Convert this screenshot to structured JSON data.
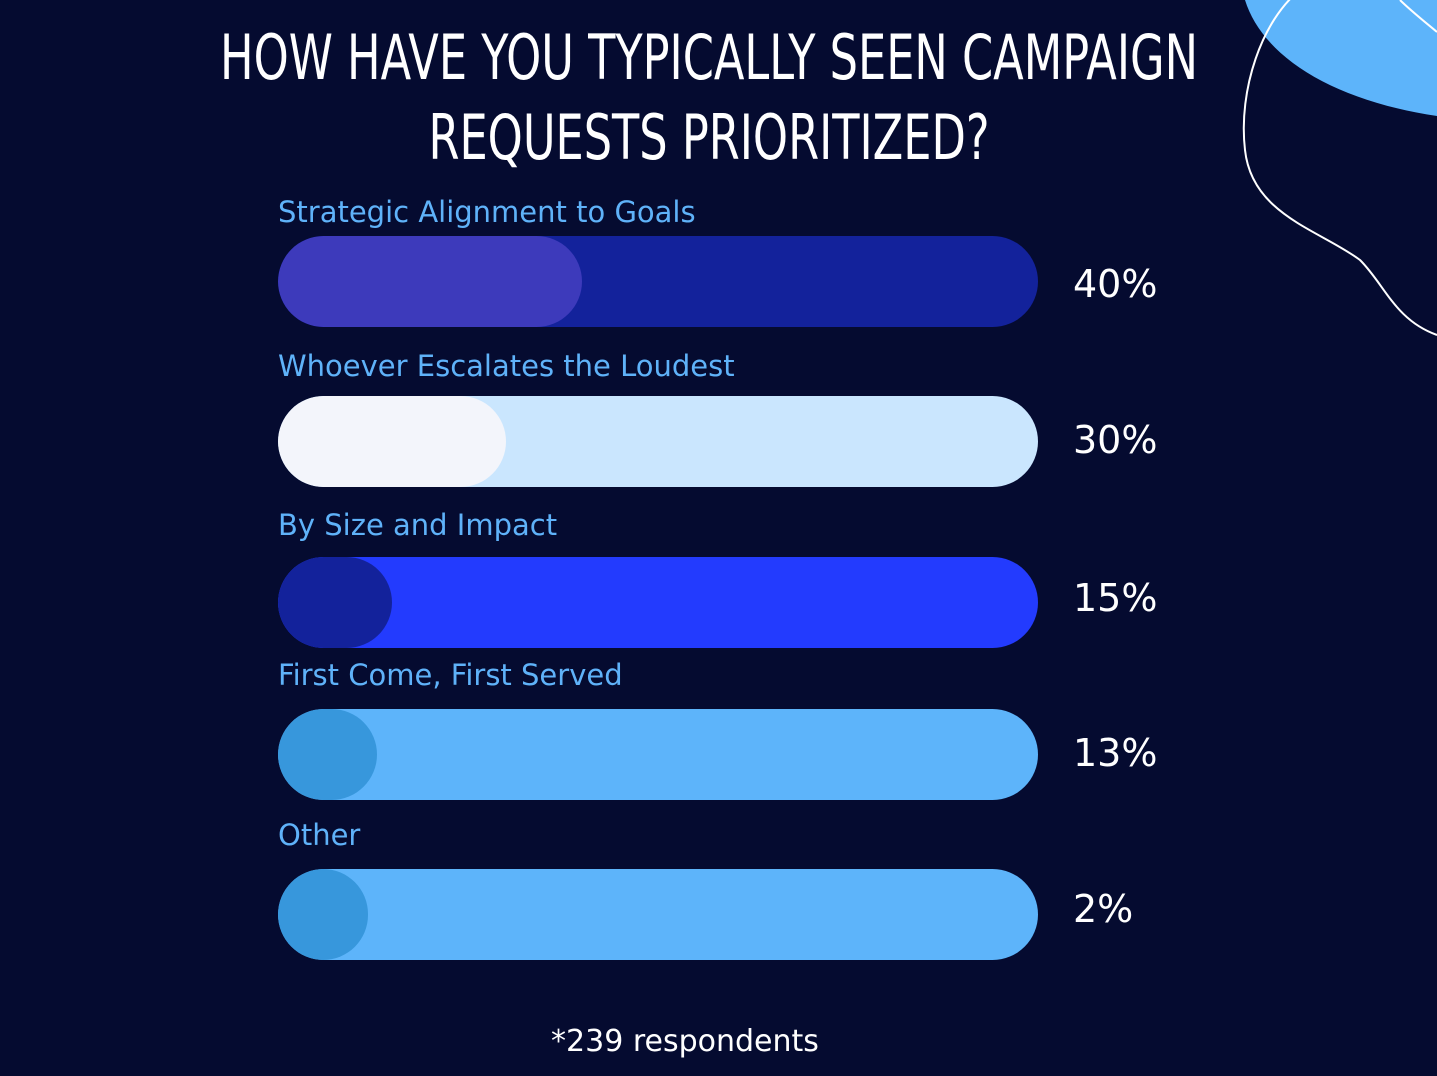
{
  "chart_data": {
    "type": "bar",
    "title": "HOW HAVE YOU TYPICALLY SEEN CAMPAIGN REQUESTS PRIORITIZED?",
    "title_lines": [
      "HOW HAVE YOU TYPICALLY SEEN CAMPAIGN",
      "REQUESTS PRIORITIZED?"
    ],
    "orientation": "horizontal",
    "unit": "%",
    "xlim": [
      0,
      100
    ],
    "categories": [
      "Strategic Alignment to Goals",
      "Whoever Escalates the Loudest",
      "By Size and Impact",
      "First Come, First Served",
      "Other"
    ],
    "values": [
      40,
      30,
      15,
      13,
      2
    ],
    "value_labels": [
      "40%",
      "30%",
      "15%",
      "13%",
      "2%"
    ],
    "footnote": "*239 respondents",
    "bar_colors": [
      {
        "track": "#13229b",
        "fill": "#3d3abb"
      },
      {
        "track": "#cae6fe",
        "fill": "#f3f5fb"
      },
      {
        "track": "#233bfe",
        "fill": "#13229b"
      },
      {
        "track": "#5db4fa",
        "fill": "#3797dc"
      },
      {
        "track": "#5db4fa",
        "fill": "#3797dc"
      }
    ]
  },
  "colors": {
    "background": "#050b30",
    "label": "#5fb2f9",
    "text": "#ffffff",
    "decoration_blob": "#5db4fa",
    "decoration_line": "#ffffff"
  }
}
